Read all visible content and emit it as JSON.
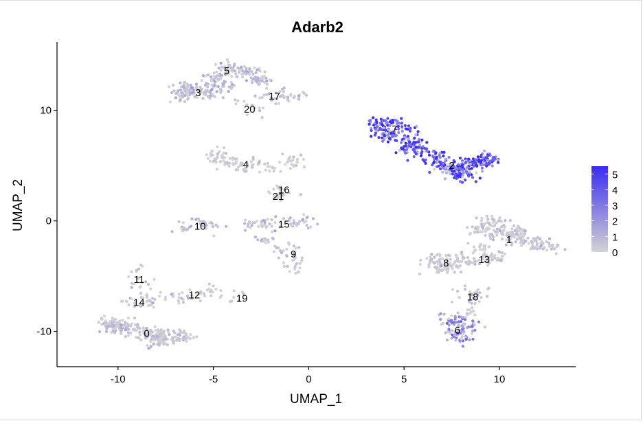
{
  "chart_data": {
    "type": "scatter",
    "title": "Adarb2",
    "xlabel": "UMAP_1",
    "ylabel": "UMAP_2",
    "xlim": [
      -13.2,
      14.0
    ],
    "ylim": [
      -13.2,
      16.2
    ],
    "xticks": [
      -10,
      -5,
      0,
      5,
      10
    ],
    "yticks": [
      -10,
      0,
      10
    ],
    "grid": false,
    "colorbar": {
      "label_values": [
        5,
        4,
        3,
        2,
        1,
        0
      ],
      "range": [
        0,
        5.5
      ],
      "low_color": "#d3d3d3",
      "high_color": "#3a2cf2",
      "placement": "right"
    },
    "clusters": [
      {
        "label": "0",
        "x": -8.5,
        "y": -10.2,
        "expr": 0.4
      },
      {
        "label": "1",
        "x": 10.5,
        "y": -1.7,
        "expr": 0.3
      },
      {
        "label": "2",
        "x": 7.5,
        "y": 5.0,
        "expr": 4.0
      },
      {
        "label": "3",
        "x": -5.8,
        "y": 11.6,
        "expr": 0.5
      },
      {
        "label": "4",
        "x": -3.3,
        "y": 5.1,
        "expr": 0.1
      },
      {
        "label": "5",
        "x": -4.3,
        "y": 13.6,
        "expr": 0.6
      },
      {
        "label": "6",
        "x": 7.8,
        "y": -9.9,
        "expr": 1.8
      },
      {
        "label": "7",
        "x": 4.5,
        "y": 8.3,
        "expr": 4.2
      },
      {
        "label": "8",
        "x": 7.2,
        "y": -3.8,
        "expr": 0.2
      },
      {
        "label": "9",
        "x": -0.8,
        "y": -3.0,
        "expr": 0.4
      },
      {
        "label": "10",
        "x": -5.7,
        "y": -0.5,
        "expr": 0.5
      },
      {
        "label": "11",
        "x": -8.9,
        "y": -5.3,
        "expr": 0.2
      },
      {
        "label": "12",
        "x": -6.0,
        "y": -6.7,
        "expr": 0.2
      },
      {
        "label": "13",
        "x": 9.2,
        "y": -3.5,
        "expr": 0.2
      },
      {
        "label": "14",
        "x": -8.9,
        "y": -7.4,
        "expr": 0.2
      },
      {
        "label": "15",
        "x": -1.3,
        "y": -0.3,
        "expr": 0.3
      },
      {
        "label": "16",
        "x": -1.3,
        "y": 2.8,
        "expr": 0.1
      },
      {
        "label": "17",
        "x": -1.8,
        "y": 11.3,
        "expr": 0.5
      },
      {
        "label": "18",
        "x": 8.6,
        "y": -6.9,
        "expr": 0.2
      },
      {
        "label": "19",
        "x": -3.5,
        "y": -7.0,
        "expr": 0.1
      },
      {
        "label": "20",
        "x": -3.1,
        "y": 10.1,
        "expr": 0.1
      },
      {
        "label": "21",
        "x": -1.6,
        "y": 2.2,
        "expr": 0.1
      }
    ]
  }
}
